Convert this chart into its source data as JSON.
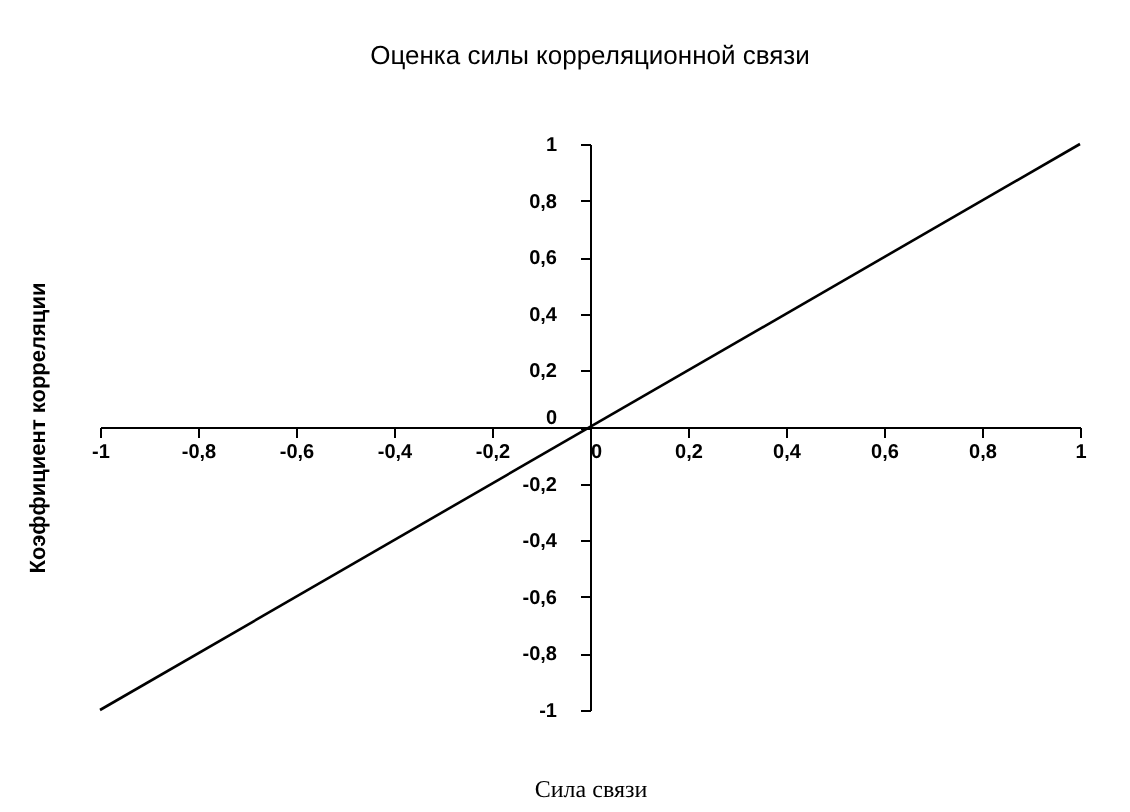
{
  "chart_data": {
    "type": "line",
    "title": "Оценка силы корреляционной связи",
    "xlabel": "Сила связи",
    "ylabel": "Коэффициент корреляции",
    "x": [
      -1,
      1
    ],
    "series": [
      {
        "color": "#000000",
        "values": [
          -1,
          1
        ]
      }
    ],
    "xlim": [
      -1,
      1
    ],
    "ylim": [
      -1,
      1
    ],
    "xticks": [
      -1,
      {
        "value": -0.8,
        "label": "-0,8"
      },
      {
        "value": -0.6,
        "label": "-0,6"
      },
      {
        "value": -0.4,
        "label": "-0,4"
      },
      {
        "value": -0.2,
        "label": "-0,2"
      },
      0,
      {
        "value": 0.2,
        "label": "0,2"
      },
      {
        "value": 0.4,
        "label": "0,4"
      },
      {
        "value": 0.6,
        "label": "0,6"
      },
      {
        "value": 0.8,
        "label": "0,8"
      },
      1
    ],
    "yticks": [
      -1,
      {
        "value": -0.8,
        "label": "-0,8"
      },
      {
        "value": -0.6,
        "label": "-0,6"
      },
      {
        "value": -0.4,
        "label": "-0,4"
      },
      {
        "value": -0.2,
        "label": "-0,2"
      },
      0,
      {
        "value": 0.2,
        "label": "0,2"
      },
      {
        "value": 0.4,
        "label": "0,4"
      },
      {
        "value": 0.6,
        "label": "0,6"
      },
      {
        "value": 0.8,
        "label": "0,8"
      },
      1
    ],
    "grid": false,
    "marker": "none",
    "line_style": "solid"
  }
}
